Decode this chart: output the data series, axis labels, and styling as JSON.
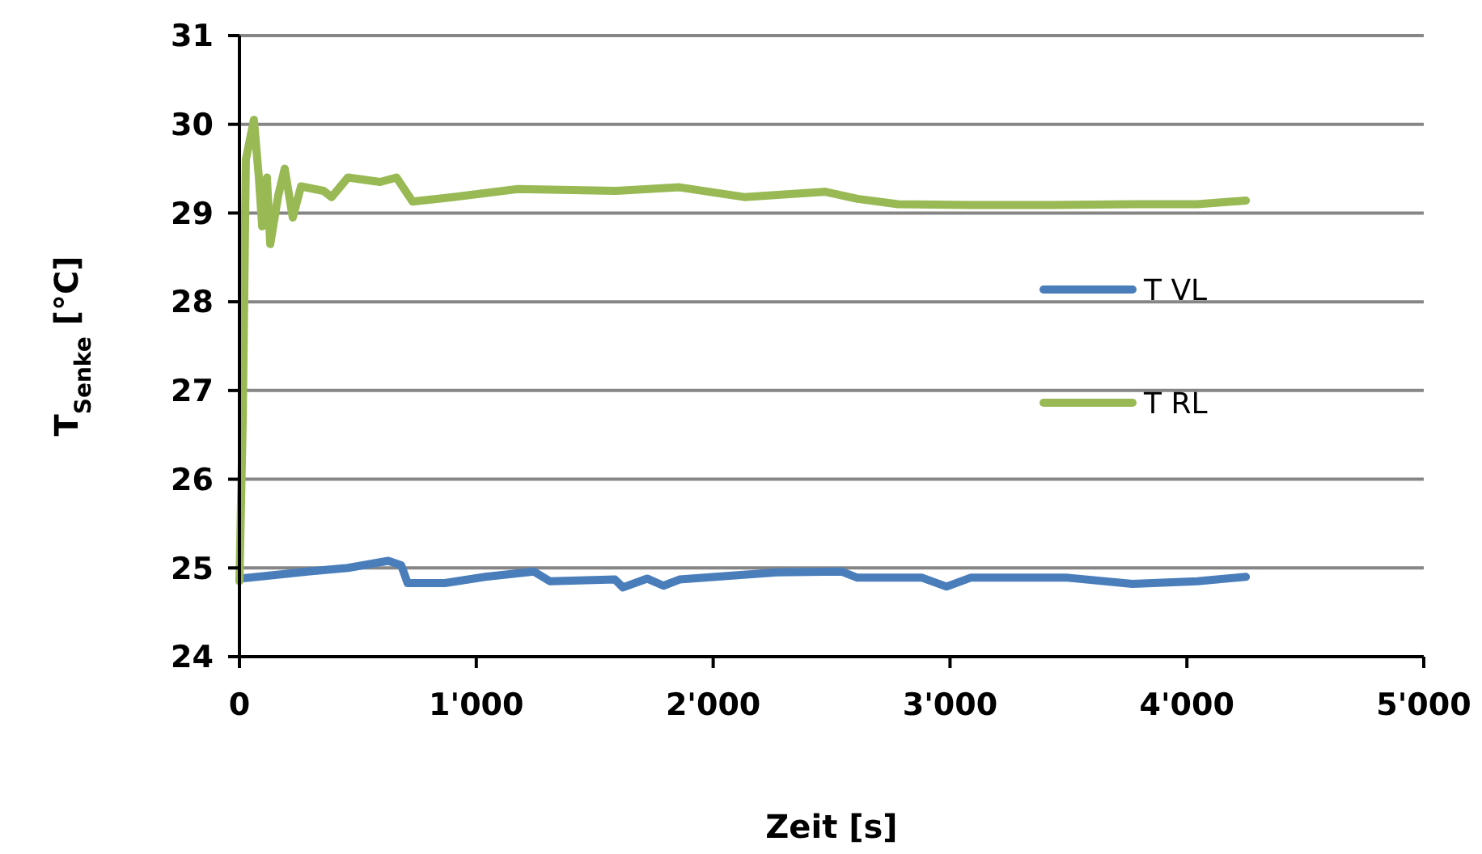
{
  "chart_data": {
    "type": "line",
    "xlabel": "Zeit [s]",
    "ylabel": "T$_{Senke}$ [°C]",
    "xlim": [
      0,
      5000
    ],
    "ylim": [
      24,
      31
    ],
    "xticks": [
      0,
      {
        "value": 1000,
        "label": "1'000"
      },
      {
        "value": 2000,
        "label": "2'000"
      },
      {
        "value": 3000,
        "label": "3'000"
      },
      {
        "value": 4000,
        "label": "4'000"
      },
      {
        "value": 5000,
        "label": "5'000"
      }
    ],
    "yticks": [
      24,
      25,
      26,
      27,
      28,
      29,
      30,
      31
    ],
    "grid": "y",
    "legend": "right",
    "series": [
      {
        "name": "T VL",
        "color": "#4a7ebb",
        "x": [
          0,
          150,
          287,
          458,
          628,
          683,
          710,
          867,
          1038,
          1243,
          1311,
          1585,
          1619,
          1721,
          1790,
          1858,
          2268,
          2541,
          2609,
          2882,
          2985,
          3087,
          3497,
          3770,
          4044,
          4249
        ],
        "values": [
          24.88,
          24.92,
          24.96,
          25.0,
          25.08,
          25.03,
          24.83,
          24.83,
          24.9,
          24.96,
          24.85,
          24.87,
          24.78,
          24.88,
          24.8,
          24.87,
          24.95,
          24.96,
          24.89,
          24.89,
          24.79,
          24.89,
          24.89,
          24.82,
          24.85,
          24.9
        ]
      },
      {
        "name": "T RL",
        "color": "#98b954",
        "x": [
          0,
          14,
          27,
          61,
          82,
          96,
          116,
          130,
          164,
          191,
          225,
          260,
          355,
          389,
          458,
          594,
          663,
          731,
          902,
          1175,
          1585,
          1858,
          2131,
          2473,
          2609,
          2780,
          3087,
          3429,
          3770,
          4044,
          4249
        ],
        "values": [
          24.85,
          26.7,
          29.6,
          30.05,
          29.4,
          28.85,
          29.4,
          28.65,
          29.2,
          29.5,
          28.95,
          29.3,
          29.25,
          29.18,
          29.4,
          29.35,
          29.4,
          29.13,
          29.18,
          29.27,
          29.25,
          29.29,
          29.18,
          29.24,
          29.16,
          29.1,
          29.09,
          29.09,
          29.1,
          29.1,
          29.14
        ]
      }
    ]
  }
}
